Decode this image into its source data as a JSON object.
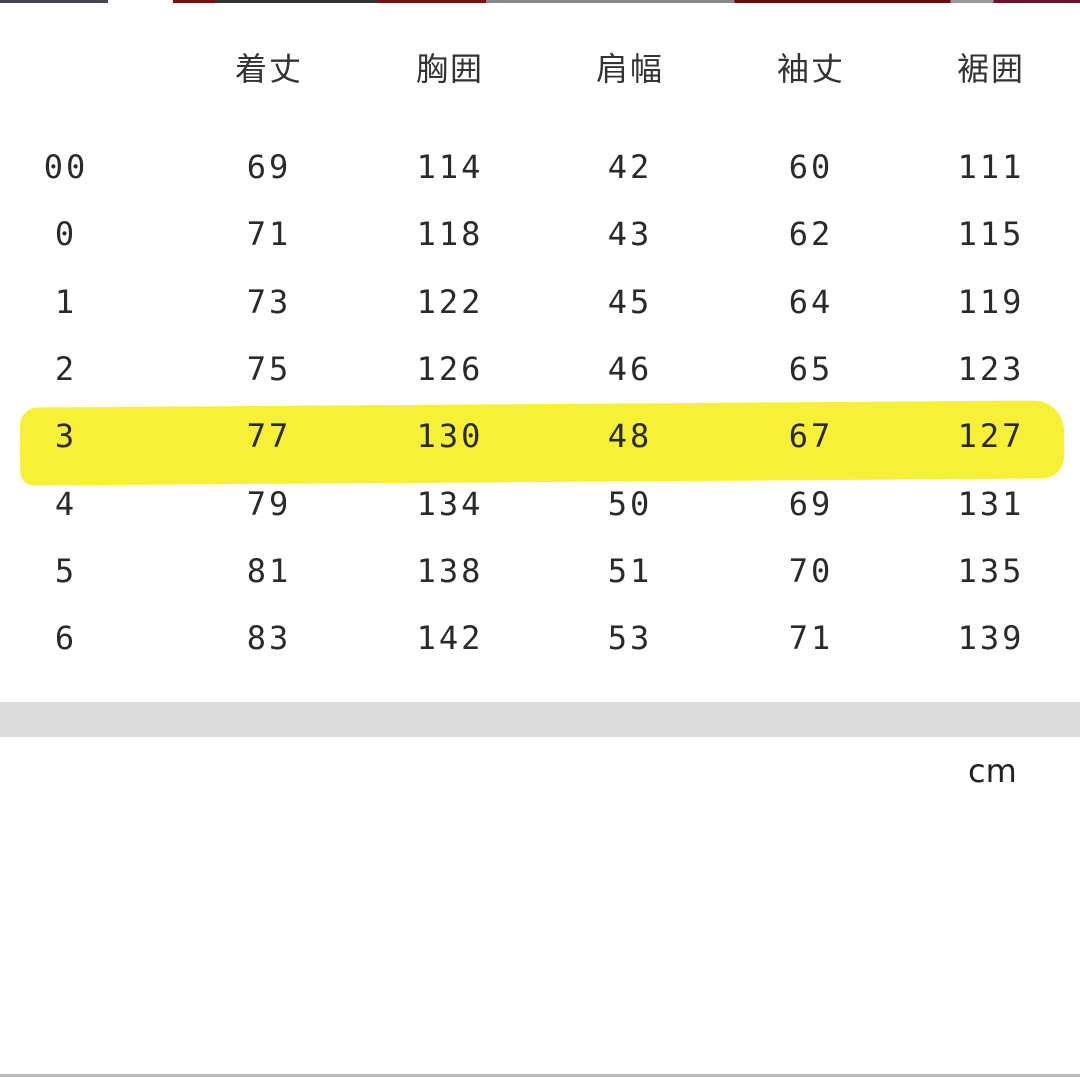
{
  "table": {
    "headers": [
      "",
      "着丈",
      "胸囲",
      "肩幅",
      "袖丈",
      "裾囲"
    ],
    "rows": [
      [
        "00",
        "69",
        "114",
        "42",
        "60",
        "111"
      ],
      [
        "0",
        "71",
        "118",
        "43",
        "62",
        "115"
      ],
      [
        "1",
        "73",
        "122",
        "45",
        "64",
        "119"
      ],
      [
        "2",
        "75",
        "126",
        "46",
        "65",
        "123"
      ],
      [
        "3",
        "77",
        "130",
        "48",
        "67",
        "127"
      ],
      [
        "4",
        "79",
        "134",
        "50",
        "69",
        "131"
      ],
      [
        "5",
        "81",
        "138",
        "51",
        "70",
        "135"
      ],
      [
        "6",
        "83",
        "142",
        "53",
        "71",
        "139"
      ]
    ],
    "highlighted_row": "3",
    "highlight_color": "#f6f02c"
  },
  "unit": "cm"
}
